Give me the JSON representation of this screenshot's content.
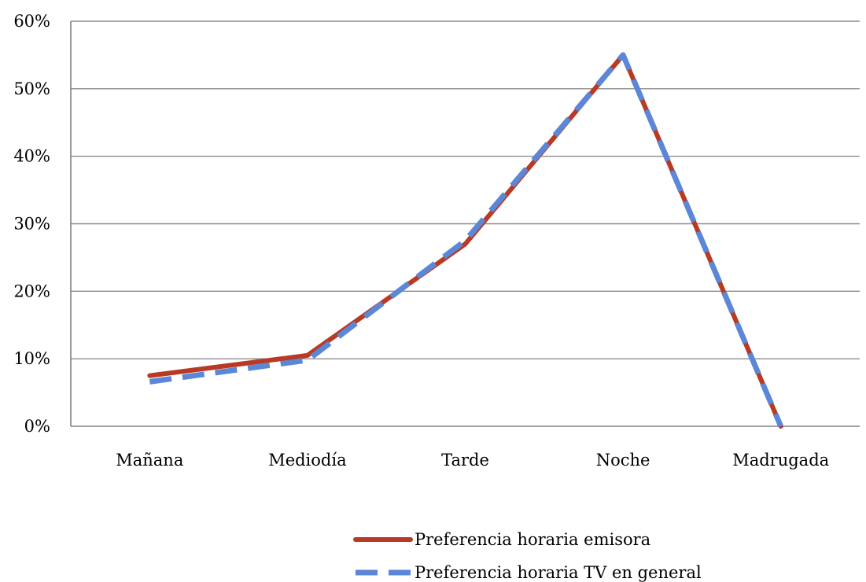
{
  "chart_data": {
    "type": "line",
    "title": "",
    "xlabel": "",
    "ylabel": "",
    "categories": [
      "Mañana",
      "Mediodía",
      "Tarde",
      "Noche",
      "Madrugada"
    ],
    "ylim": [
      0,
      60
    ],
    "y_ticks": [
      "0%",
      "10%",
      "20%",
      "30%",
      "40%",
      "50%",
      "60%"
    ],
    "grid": true,
    "legend_position": "bottom",
    "series": [
      {
        "name": "Preferencia horaria emisora",
        "values": [
          7.5,
          10.5,
          27,
          55,
          0
        ],
        "color": "#B83A25",
        "dash": "solid"
      },
      {
        "name": "Preferencia horaria TV en general",
        "values": [
          6.6,
          9.8,
          27.5,
          55,
          0
        ],
        "color": "#5B87D6",
        "dash": "dashed"
      }
    ]
  }
}
